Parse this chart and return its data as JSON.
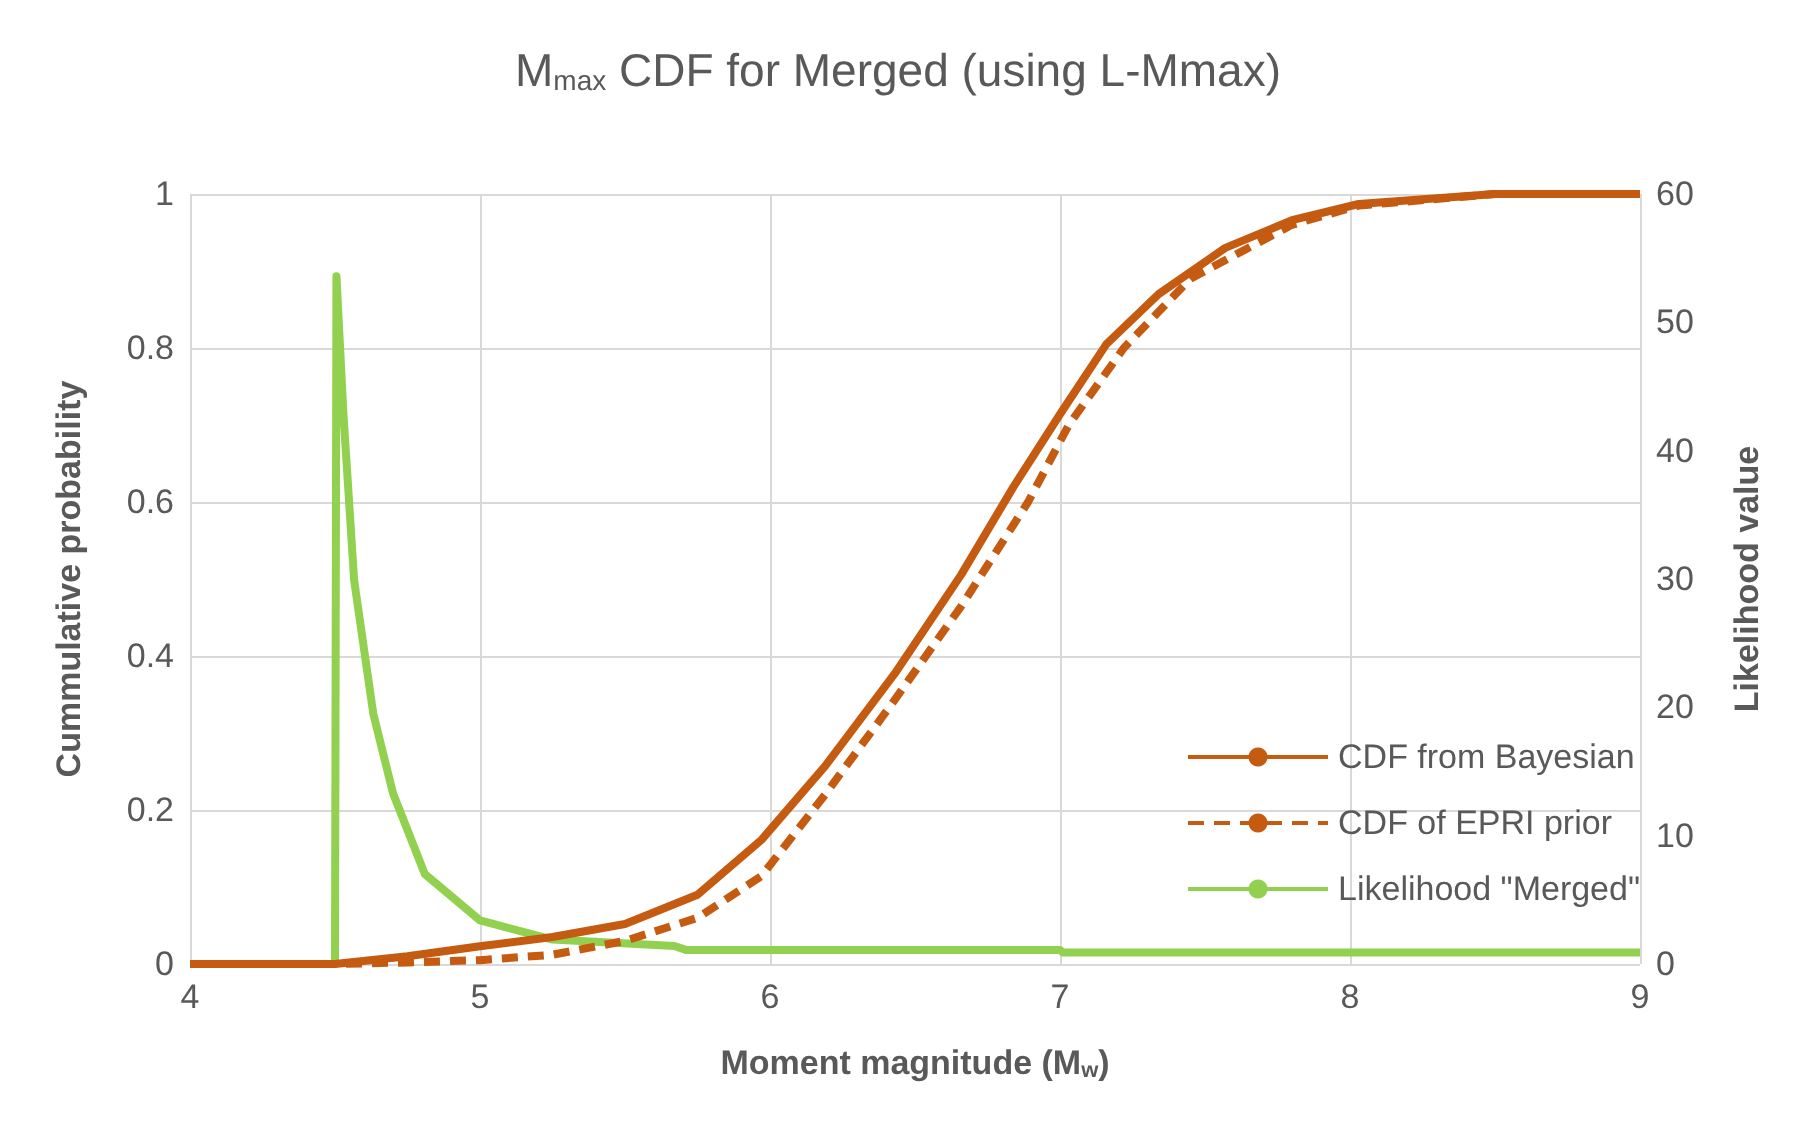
{
  "chart_data": {
    "type": "line",
    "title": "M$_{max}$ CDF for Merged (using L-Mmax)",
    "xlabel": "Moment magnitude (M$_{w}$)",
    "ylabel": "Cummulative probability",
    "y2label": "Likelihood value",
    "xlim": [
      4,
      9
    ],
    "xticks": [
      4,
      5,
      6,
      7,
      8,
      9
    ],
    "ylim": [
      0,
      1
    ],
    "yticks": [
      0,
      0.2,
      0.4,
      0.6,
      0.8,
      1
    ],
    "y2lim": [
      0,
      60
    ],
    "y2ticks": [
      0,
      10,
      20,
      30,
      40,
      50,
      60
    ],
    "grid": true,
    "legend": "bottom right",
    "marker": "none",
    "series": [
      {
        "name": "CDF from Bayesian",
        "color": "#c55a11",
        "line_style": "solid",
        "x": [
          4,
          4.5,
          4.75,
          5,
          5.25,
          5.5,
          5.75,
          5.97,
          6.19,
          6.43,
          6.66,
          6.84,
          7,
          7.16,
          7.34,
          7.57,
          7.8,
          8.03,
          8.5,
          9
        ],
        "values": [
          0,
          0,
          0.01,
          0.023,
          0.035,
          0.052,
          0.09,
          0.161,
          0.257,
          0.377,
          0.506,
          0.62,
          0.714,
          0.805,
          0.87,
          0.93,
          0.966,
          0.987,
          1,
          1
        ]
      },
      {
        "name": "CDF of EPRI prior",
        "color": "#c55a11",
        "line_style": "dashed",
        "x": [
          4,
          4.5,
          4.75,
          5,
          5.25,
          5.5,
          5.75,
          5.97,
          6.19,
          6.43,
          6.66,
          6.89,
          7.03,
          7.22,
          7.45,
          7.8,
          8.03,
          8.5,
          9
        ],
        "values": [
          0,
          0,
          0.002,
          0.005,
          0.012,
          0.03,
          0.06,
          0.114,
          0.22,
          0.343,
          0.465,
          0.6,
          0.7,
          0.8,
          0.89,
          0.96,
          0.985,
          1,
          1
        ]
      },
      {
        "name": "Likelihood \"Merged\"",
        "color": "#92d050",
        "line_style": "solid",
        "axis": "y2",
        "x": [
          4,
          4.5,
          4.505,
          4.529,
          4.566,
          4.632,
          4.7,
          4.81,
          5,
          5.25,
          5.67,
          5.71,
          7,
          7.01,
          9
        ],
        "values": [
          0,
          0,
          53.6,
          42.9,
          29.9,
          19.5,
          13.3,
          7,
          3.4,
          1.9,
          1.4,
          1.1,
          1.1,
          0.9,
          0.9
        ]
      }
    ]
  }
}
